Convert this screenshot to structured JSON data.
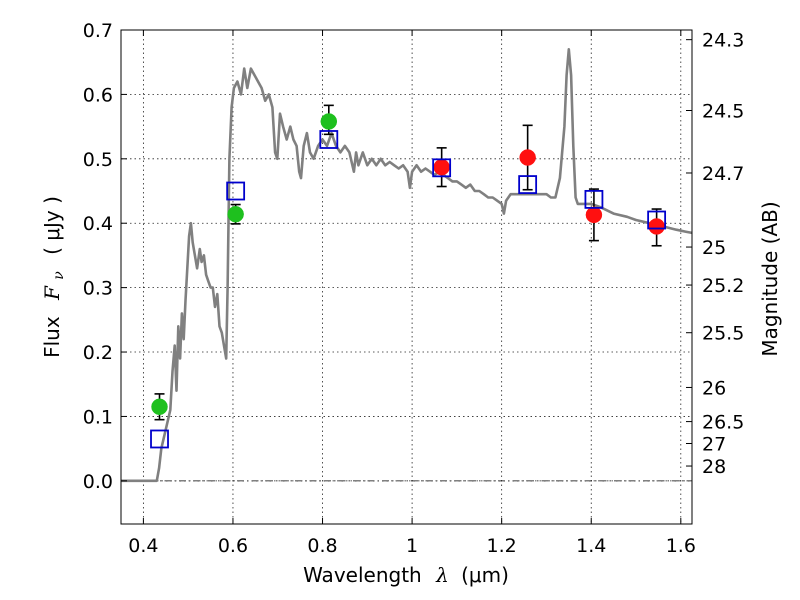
{
  "chart_data": {
    "type": "scatter",
    "xlabel_prefix": "Wavelength",
    "xlabel_symbol": "λ",
    "xlabel_unit": "(μm)",
    "ylabel_prefix": "Flux",
    "ylabel_symbol": "F",
    "ylabel_subscript": "ν",
    "ylabel_unit": "( μJy )",
    "y2label": "Magnitude (AB)",
    "xlim": [
      0.35,
      1.625
    ],
    "ylim": [
      -0.067,
      0.7
    ],
    "xticks": [
      0.4,
      0.6,
      0.8,
      1.0,
      1.2,
      1.4,
      1.6
    ],
    "xtick_labels": [
      "0.4",
      "0.6",
      "0.8",
      "1",
      "1.2",
      "1.4",
      "1.6"
    ],
    "yticks": [
      0.0,
      0.1,
      0.2,
      0.3,
      0.4,
      0.5,
      0.6,
      0.7
    ],
    "ytick_labels": [
      "0.0",
      "0.1",
      "0.2",
      "0.3",
      "0.4",
      "0.5",
      "0.6",
      "0.7"
    ],
    "y2ticks": [
      {
        "flux": 0.685,
        "label": "24.3"
      },
      {
        "flux": 0.575,
        "label": "24.5"
      },
      {
        "flux": 0.478,
        "label": "24.7"
      },
      {
        "flux": 0.363,
        "label": "25"
      },
      {
        "flux": 0.304,
        "label": "25.2"
      },
      {
        "flux": 0.23,
        "label": "25.5"
      },
      {
        "flux": 0.145,
        "label": "26"
      },
      {
        "flux": 0.092,
        "label": "26.5"
      },
      {
        "flux": 0.058,
        "label": "27"
      },
      {
        "flux": 0.023,
        "label": "28"
      }
    ],
    "grid": true,
    "zero_line": true,
    "model_spectrum": {
      "color": "#808080",
      "points": [
        [
          0.35,
          0.0
        ],
        [
          0.43,
          0.0
        ],
        [
          0.435,
          0.02
        ],
        [
          0.44,
          0.05
        ],
        [
          0.45,
          0.08
        ],
        [
          0.46,
          0.11
        ],
        [
          0.465,
          0.17
        ],
        [
          0.47,
          0.21
        ],
        [
          0.474,
          0.14
        ],
        [
          0.478,
          0.24
        ],
        [
          0.482,
          0.19
        ],
        [
          0.486,
          0.26
        ],
        [
          0.49,
          0.22
        ],
        [
          0.494,
          0.28
        ],
        [
          0.498,
          0.33
        ],
        [
          0.502,
          0.38
        ],
        [
          0.506,
          0.4
        ],
        [
          0.51,
          0.37
        ],
        [
          0.515,
          0.35
        ],
        [
          0.52,
          0.33
        ],
        [
          0.526,
          0.36
        ],
        [
          0.53,
          0.34
        ],
        [
          0.535,
          0.35
        ],
        [
          0.54,
          0.32
        ],
        [
          0.545,
          0.31
        ],
        [
          0.55,
          0.3
        ],
        [
          0.555,
          0.3
        ],
        [
          0.56,
          0.27
        ],
        [
          0.565,
          0.29
        ],
        [
          0.57,
          0.24
        ],
        [
          0.575,
          0.23
        ],
        [
          0.58,
          0.21
        ],
        [
          0.585,
          0.19
        ],
        [
          0.588,
          0.3
        ],
        [
          0.592,
          0.5
        ],
        [
          0.597,
          0.58
        ],
        [
          0.602,
          0.61
        ],
        [
          0.61,
          0.62
        ],
        [
          0.618,
          0.6
        ],
        [
          0.625,
          0.64
        ],
        [
          0.632,
          0.61
        ],
        [
          0.64,
          0.64
        ],
        [
          0.648,
          0.63
        ],
        [
          0.656,
          0.62
        ],
        [
          0.664,
          0.61
        ],
        [
          0.672,
          0.59
        ],
        [
          0.68,
          0.6
        ],
        [
          0.688,
          0.58
        ],
        [
          0.694,
          0.51
        ],
        [
          0.699,
          0.5
        ],
        [
          0.705,
          0.57
        ],
        [
          0.712,
          0.55
        ],
        [
          0.72,
          0.53
        ],
        [
          0.728,
          0.55
        ],
        [
          0.735,
          0.53
        ],
        [
          0.742,
          0.52
        ],
        [
          0.748,
          0.48
        ],
        [
          0.752,
          0.47
        ],
        [
          0.758,
          0.52
        ],
        [
          0.765,
          0.54
        ],
        [
          0.772,
          0.51
        ],
        [
          0.78,
          0.5
        ],
        [
          0.79,
          0.52
        ],
        [
          0.8,
          0.53
        ],
        [
          0.81,
          0.52
        ],
        [
          0.82,
          0.54
        ],
        [
          0.83,
          0.52
        ],
        [
          0.84,
          0.51
        ],
        [
          0.85,
          0.52
        ],
        [
          0.86,
          0.51
        ],
        [
          0.87,
          0.48
        ],
        [
          0.875,
          0.51
        ],
        [
          0.88,
          0.49
        ],
        [
          0.89,
          0.51
        ],
        [
          0.9,
          0.49
        ],
        [
          0.91,
          0.5
        ],
        [
          0.92,
          0.49
        ],
        [
          0.93,
          0.5
        ],
        [
          0.94,
          0.49
        ],
        [
          0.95,
          0.495
        ],
        [
          0.96,
          0.49
        ],
        [
          0.97,
          0.485
        ],
        [
          0.98,
          0.49
        ],
        [
          0.99,
          0.48
        ],
        [
          0.995,
          0.455
        ],
        [
          1.0,
          0.48
        ],
        [
          1.01,
          0.49
        ],
        [
          1.02,
          0.48
        ],
        [
          1.03,
          0.485
        ],
        [
          1.04,
          0.48
        ],
        [
          1.05,
          0.475
        ],
        [
          1.06,
          0.48
        ],
        [
          1.07,
          0.475
        ],
        [
          1.08,
          0.47
        ],
        [
          1.09,
          0.465
        ],
        [
          1.1,
          0.465
        ],
        [
          1.11,
          0.46
        ],
        [
          1.12,
          0.455
        ],
        [
          1.13,
          0.46
        ],
        [
          1.14,
          0.45
        ],
        [
          1.15,
          0.45
        ],
        [
          1.16,
          0.445
        ],
        [
          1.17,
          0.44
        ],
        [
          1.18,
          0.44
        ],
        [
          1.19,
          0.435
        ],
        [
          1.2,
          0.43
        ],
        [
          1.205,
          0.415
        ],
        [
          1.21,
          0.435
        ],
        [
          1.22,
          0.445
        ],
        [
          1.24,
          0.445
        ],
        [
          1.26,
          0.445
        ],
        [
          1.28,
          0.445
        ],
        [
          1.3,
          0.445
        ],
        [
          1.31,
          0.44
        ],
        [
          1.32,
          0.44
        ],
        [
          1.33,
          0.47
        ],
        [
          1.34,
          0.55
        ],
        [
          1.345,
          0.63
        ],
        [
          1.35,
          0.67
        ],
        [
          1.355,
          0.63
        ],
        [
          1.36,
          0.52
        ],
        [
          1.365,
          0.44
        ],
        [
          1.37,
          0.43
        ],
        [
          1.38,
          0.43
        ],
        [
          1.4,
          0.43
        ],
        [
          1.42,
          0.425
        ],
        [
          1.45,
          0.415
        ],
        [
          1.48,
          0.41
        ],
        [
          1.5,
          0.405
        ],
        [
          1.53,
          0.4
        ],
        [
          1.56,
          0.395
        ],
        [
          1.59,
          0.39
        ],
        [
          1.61,
          0.387
        ],
        [
          1.625,
          0.385
        ]
      ]
    },
    "observed": [
      {
        "x": 0.436,
        "y": 0.115,
        "yerr_low": 0.02,
        "yerr_high": 0.02,
        "color": "#1ec01e"
      },
      {
        "x": 0.606,
        "y": 0.414,
        "yerr_low": 0.015,
        "yerr_high": 0.015,
        "color": "#1ec01e"
      },
      {
        "x": 0.814,
        "y": 0.558,
        "yerr_low": 0.02,
        "yerr_high": 0.025,
        "color": "#1ec01e"
      },
      {
        "x": 1.066,
        "y": 0.487,
        "yerr_low": 0.03,
        "yerr_high": 0.03,
        "color": "#ff1010"
      },
      {
        "x": 1.258,
        "y": 0.502,
        "yerr_low": 0.05,
        "yerr_high": 0.05,
        "color": "#ff1010"
      },
      {
        "x": 1.406,
        "y": 0.413,
        "yerr_low": 0.04,
        "yerr_high": 0.04,
        "color": "#ff1010"
      },
      {
        "x": 1.546,
        "y": 0.395,
        "yerr_low": 0.03,
        "yerr_high": 0.027,
        "color": "#ff1010"
      }
    ],
    "model_photometry": {
      "color": "#0000cc",
      "points": [
        {
          "x": 0.436,
          "y": 0.065
        },
        {
          "x": 0.606,
          "y": 0.45
        },
        {
          "x": 0.814,
          "y": 0.53
        },
        {
          "x": 1.066,
          "y": 0.486
        },
        {
          "x": 1.258,
          "y": 0.46
        },
        {
          "x": 1.406,
          "y": 0.437
        },
        {
          "x": 1.546,
          "y": 0.405
        }
      ]
    }
  }
}
